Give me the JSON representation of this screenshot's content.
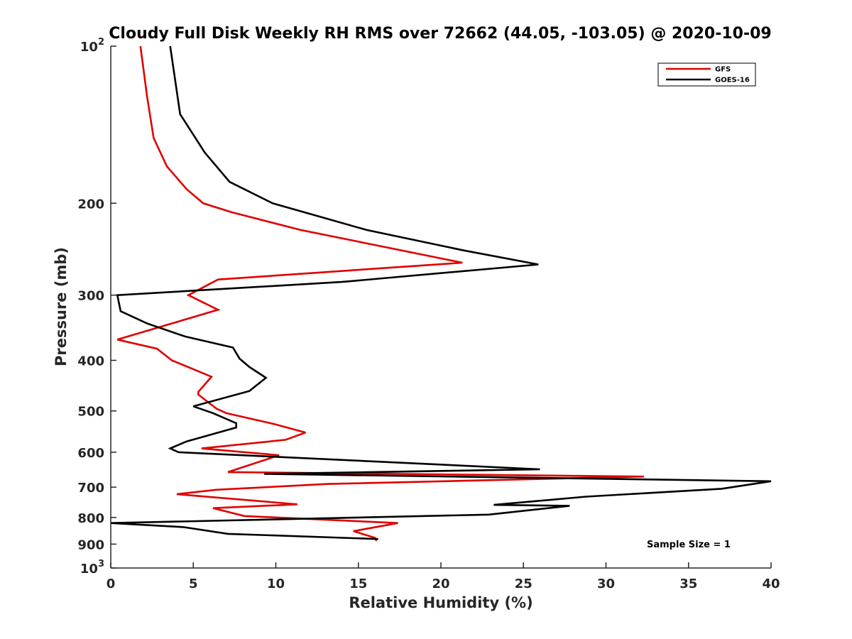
{
  "chart_data": {
    "type": "line",
    "title": "Cloudy Full Disk Weekly RH RMS over 72662 (44.05, -103.05) @ 2020-10-09",
    "xlabel": "Relative Humidity (%)",
    "ylabel": "Pressure (mb)",
    "xlim": [
      0,
      40
    ],
    "ylim": [
      100,
      1000
    ],
    "y_scale": "log",
    "y_reversed": true,
    "grid": false,
    "legend_position": "top-right",
    "annotation": "Sample Size = 1",
    "x_ticks": [
      {
        "value": 0,
        "label": "0"
      },
      {
        "value": 5,
        "label": "5"
      },
      {
        "value": 10,
        "label": "10"
      },
      {
        "value": 15,
        "label": "15"
      },
      {
        "value": 20,
        "label": "20"
      },
      {
        "value": 25,
        "label": "25"
      },
      {
        "value": 30,
        "label": "30"
      },
      {
        "value": 35,
        "label": "35"
      },
      {
        "value": 40,
        "label": "40"
      }
    ],
    "y_ticks": [
      {
        "value": 100,
        "label": "10",
        "sup": "2"
      },
      {
        "value": 200,
        "label": "200"
      },
      {
        "value": 300,
        "label": "300"
      },
      {
        "value": 400,
        "label": "400"
      },
      {
        "value": 500,
        "label": "500"
      },
      {
        "value": 600,
        "label": "600"
      },
      {
        "value": 700,
        "label": "700"
      },
      {
        "value": 800,
        "label": "800"
      },
      {
        "value": 900,
        "label": "900"
      },
      {
        "value": 1000,
        "label": "10",
        "sup": "3"
      }
    ],
    "series": [
      {
        "name": "GFS",
        "color": "#e00000",
        "points": [
          [
            1.8,
            100
          ],
          [
            2.2,
            125
          ],
          [
            2.6,
            150
          ],
          [
            3.4,
            170
          ],
          [
            4.6,
            188
          ],
          [
            5.6,
            200
          ],
          [
            7.3,
            208
          ],
          [
            11.5,
            225
          ],
          [
            21.3,
            260
          ],
          [
            6.5,
            280
          ],
          [
            4.7,
            300
          ],
          [
            6.5,
            320
          ],
          [
            0.4,
            365
          ],
          [
            2.8,
            380
          ],
          [
            3.7,
            400
          ],
          [
            6.1,
            430
          ],
          [
            5.3,
            460
          ],
          [
            5.3,
            465
          ],
          [
            6.4,
            495
          ],
          [
            7.0,
            505
          ],
          [
            9.9,
            530
          ],
          [
            11.8,
            550
          ],
          [
            10.6,
            568
          ],
          [
            5.5,
            590
          ],
          [
            10.2,
            608
          ],
          [
            7.1,
            655
          ],
          [
            32.3,
            668
          ],
          [
            13.2,
            690
          ],
          [
            6.4,
            708
          ],
          [
            4.0,
            722
          ],
          [
            11.3,
            755
          ],
          [
            6.2,
            768
          ],
          [
            8.1,
            795
          ],
          [
            17.4,
            820
          ],
          [
            14.7,
            850
          ],
          [
            16.0,
            875
          ],
          [
            16.1,
            887
          ]
        ]
      },
      {
        "name": "GOES-16",
        "color": "#000000",
        "points": [
          [
            3.6,
            100
          ],
          [
            4.2,
            135
          ],
          [
            5.7,
            160
          ],
          [
            7.2,
            182
          ],
          [
            9.8,
            200
          ],
          [
            15.5,
            225
          ],
          [
            21.3,
            246
          ],
          [
            25.9,
            262
          ],
          [
            14.0,
            283
          ],
          [
            0.4,
            300
          ],
          [
            0.6,
            322
          ],
          [
            2.2,
            340
          ],
          [
            4.5,
            360
          ],
          [
            7.4,
            378
          ],
          [
            7.8,
            397
          ],
          [
            8.4,
            412
          ],
          [
            9.4,
            432
          ],
          [
            8.4,
            458
          ],
          [
            5.0,
            490
          ],
          [
            6.2,
            505
          ],
          [
            7.6,
            528
          ],
          [
            7.6,
            538
          ],
          [
            4.6,
            572
          ],
          [
            3.6,
            590
          ],
          [
            4.1,
            600
          ],
          [
            26.0,
            647
          ],
          [
            9.3,
            660
          ],
          [
            40.0,
            682
          ],
          [
            37.0,
            705
          ],
          [
            28.8,
            730
          ],
          [
            23.2,
            757
          ],
          [
            27.8,
            760
          ],
          [
            22.9,
            790
          ],
          [
            0.0,
            820
          ],
          [
            4.4,
            835
          ],
          [
            7.1,
            860
          ],
          [
            16.2,
            880
          ]
        ]
      }
    ]
  }
}
